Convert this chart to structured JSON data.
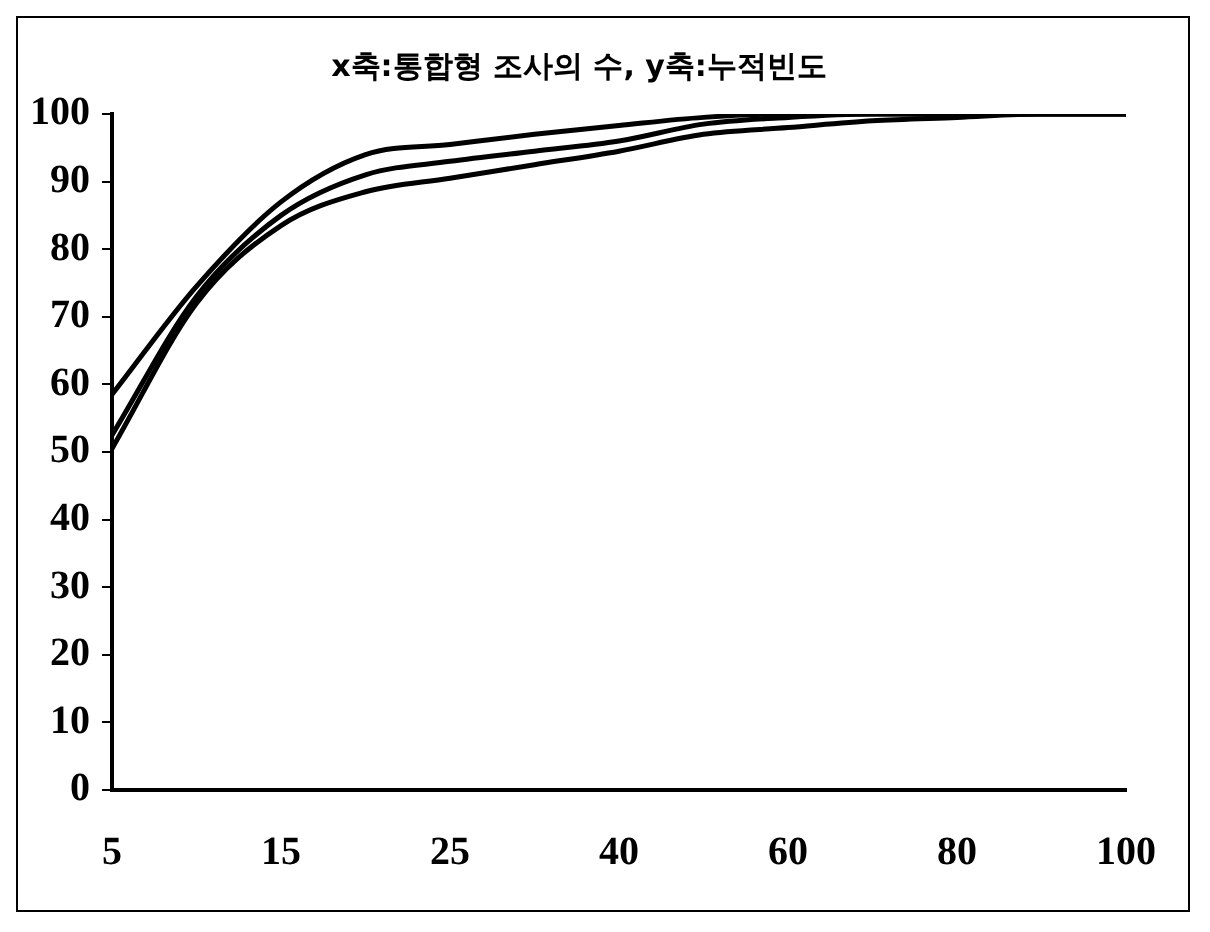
{
  "chart_data": {
    "type": "line",
    "title": "x축:통합형 조사의 수, y축:누적빈도",
    "categories": [
      "5",
      null,
      "15",
      null,
      "25",
      null,
      "40",
      null,
      "60",
      null,
      "80",
      null,
      "100"
    ],
    "series": [
      {
        "color": "#000000",
        "values": [
          58.5,
          74.5,
          87,
          94,
          95.5,
          97,
          98.3,
          99.5,
          100,
          100,
          100,
          100,
          100
        ]
      },
      {
        "color": "#000000",
        "values": [
          52.5,
          73,
          85,
          91,
          93,
          94.5,
          96,
          98.5,
          99.5,
          100,
          100,
          100,
          100
        ]
      },
      {
        "color": "#000000",
        "values": [
          50.5,
          72,
          83.5,
          88.5,
          90.5,
          92.5,
          94.5,
          97,
          98,
          99,
          99.5,
          100,
          100
        ]
      }
    ],
    "ylim": [
      0,
      100
    ],
    "yticks": [
      0,
      10,
      20,
      30,
      40,
      50,
      60,
      70,
      80,
      90,
      100
    ],
    "grid": false,
    "legend": false,
    "marker": "none",
    "line_style": "solid"
  }
}
